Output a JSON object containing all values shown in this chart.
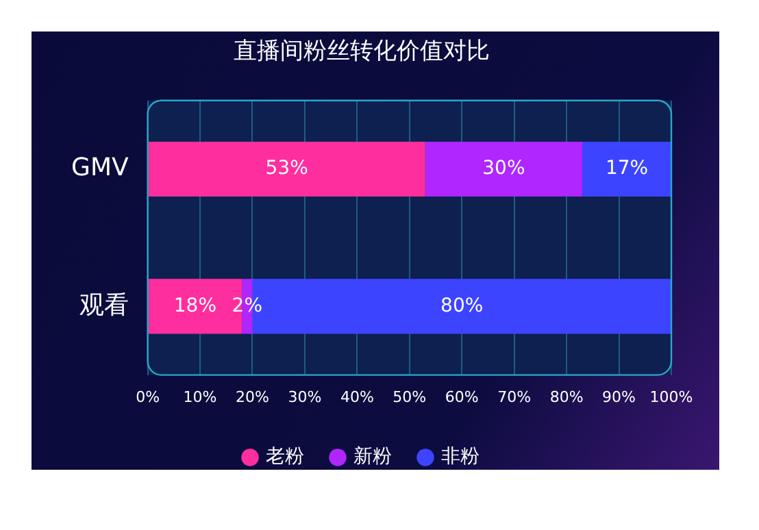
{
  "chart_data": {
    "type": "bar",
    "title": "直播间粉丝转化价值对比",
    "orientation": "horizontal",
    "stacked": true,
    "categories": [
      "GMV",
      "观看"
    ],
    "series": [
      {
        "name": "老粉",
        "color": "#ff2e9f",
        "values": [
          53,
          18
        ],
        "value_labels": [
          "53%",
          "18%"
        ]
      },
      {
        "name": "新粉",
        "color": "#b026ff",
        "values": [
          30,
          2
        ],
        "value_labels": [
          "30%",
          "2%"
        ]
      },
      {
        "name": "非粉",
        "color": "#3d44ff",
        "values": [
          17,
          80
        ],
        "value_labels": [
          "17%",
          "80%"
        ]
      }
    ],
    "xlim": [
      0,
      100
    ],
    "xticks": [
      {
        "value": 0,
        "label": "0%"
      },
      {
        "value": 10,
        "label": "10%"
      },
      {
        "value": 20,
        "label": "20%"
      },
      {
        "value": 30,
        "label": "30%"
      },
      {
        "value": 40,
        "label": "40%"
      },
      {
        "value": 50,
        "label": "50%"
      },
      {
        "value": 60,
        "label": "60%"
      },
      {
        "value": 70,
        "label": "70%"
      },
      {
        "value": 80,
        "label": "80%"
      },
      {
        "value": 90,
        "label": "90%"
      },
      {
        "value": 100,
        "label": "100%"
      }
    ],
    "grid": "x",
    "legend": "bottom"
  }
}
